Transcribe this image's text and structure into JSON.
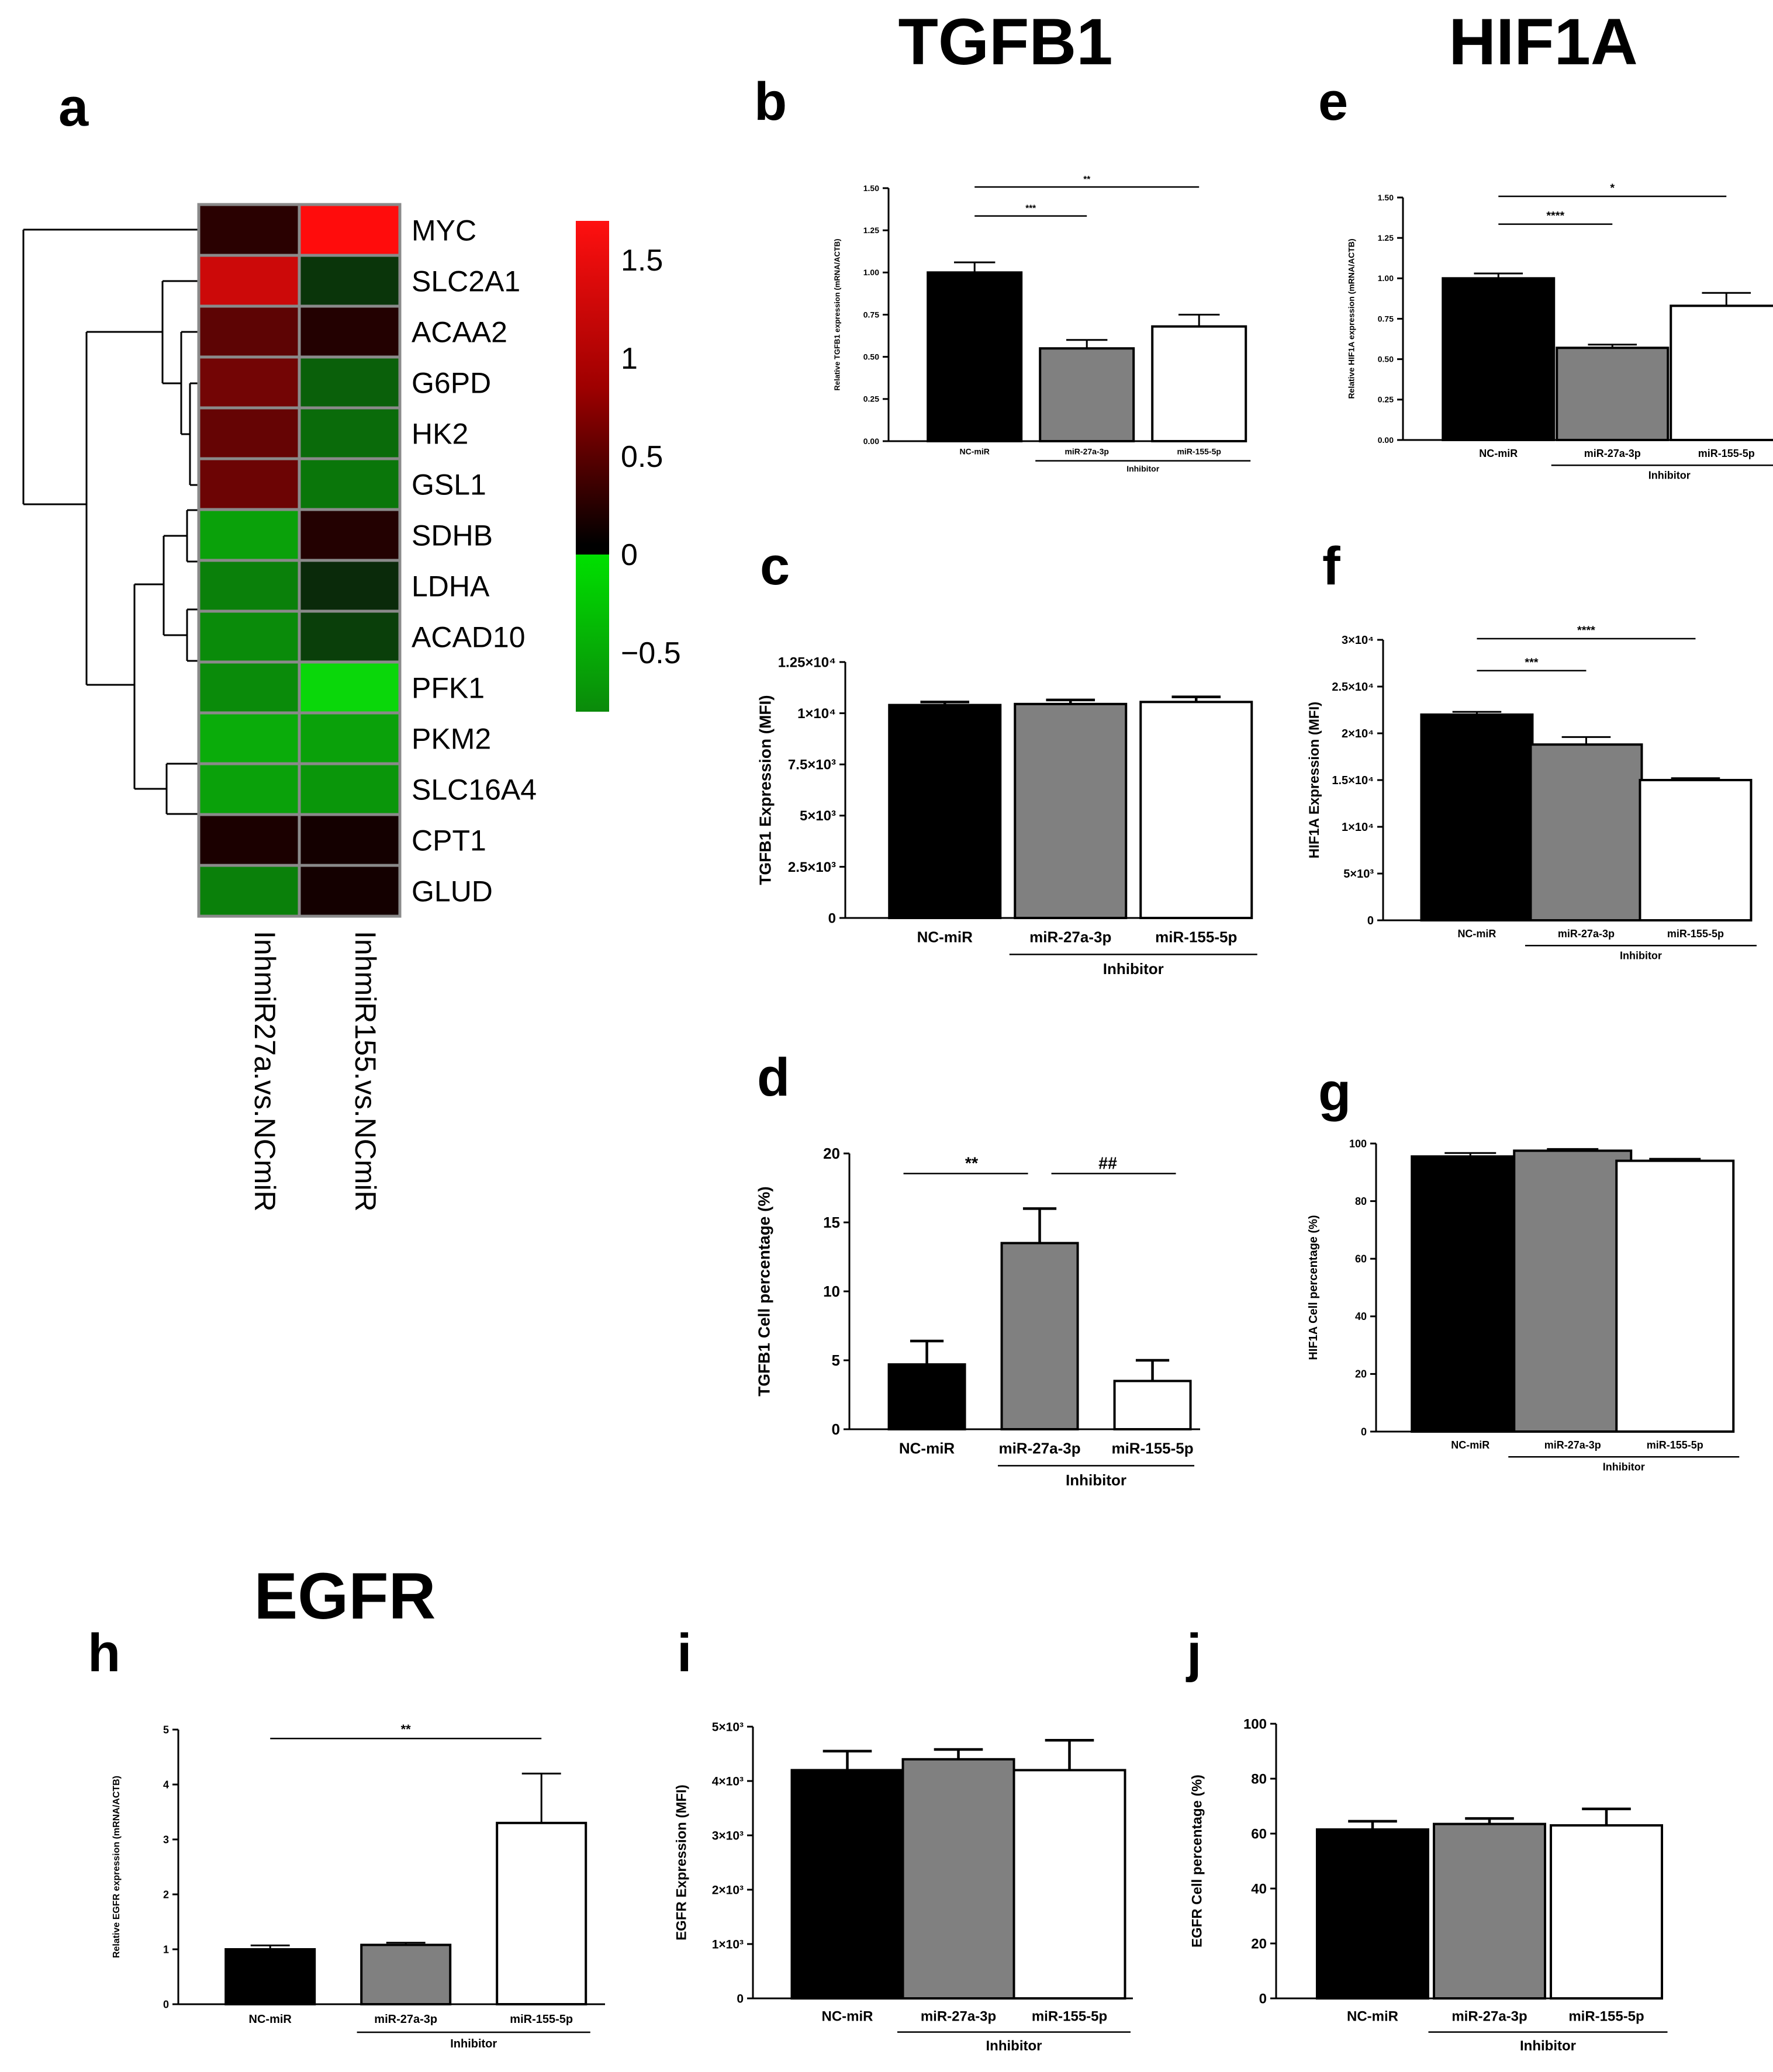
{
  "headers": {
    "tgfb1": "TGFB1",
    "hif1a": "HIF1A",
    "egfr": "EGFR"
  },
  "panel_labels": {
    "a": "a",
    "b": "b",
    "c": "c",
    "d": "d",
    "e": "e",
    "f": "f",
    "g": "g",
    "h": "h",
    "i": "i",
    "j": "j"
  },
  "chart_data": [
    {
      "id": "a",
      "type": "heatmap",
      "rows": [
        "MYC",
        "SLC2A1",
        "ACAA2",
        "G6PD",
        "HK2",
        "GSL1",
        "SDHB",
        "LDHA",
        "ACAD10",
        "PFK1",
        "PKM2",
        "SLC16A4",
        "CPT1",
        "GLUD"
      ],
      "columns": [
        "InhmiR27a.vs.NCmiR",
        "InhmiR155.vs.NCmiR"
      ],
      "values": [
        [
          0.15,
          1.6
        ],
        [
          1.25,
          -0.15
        ],
        [
          0.5,
          0.1
        ],
        [
          0.65,
          -0.35
        ],
        [
          0.55,
          -0.4
        ],
        [
          0.6,
          -0.45
        ],
        [
          -0.65,
          0.1
        ],
        [
          -0.5,
          -0.1
        ],
        [
          -0.55,
          -0.2
        ],
        [
          -0.55,
          -0.9
        ],
        [
          -0.7,
          -0.65
        ],
        [
          -0.65,
          -0.6
        ],
        [
          0.05,
          0.0
        ],
        [
          -0.5,
          0.0
        ]
      ],
      "colorbar": {
        "range": [
          -0.8,
          1.7
        ],
        "ticks": [
          "1.5",
          "1",
          "0.5",
          "0",
          "−0.5"
        ],
        "tick_values": [
          1.5,
          1.0,
          0.5,
          0.0,
          -0.5
        ]
      }
    },
    {
      "id": "b",
      "type": "bar",
      "categories": [
        "NC-miR",
        "miR-27a-3p",
        "miR-155-5p"
      ],
      "values": [
        1.0,
        0.55,
        0.68
      ],
      "errors": [
        0.06,
        0.05,
        0.07
      ],
      "ylabel": "Relative TGFB1 expression (mRNA/ACTB)",
      "ylim": [
        0,
        1.5
      ],
      "yticks": [
        "0.00",
        "0.25",
        "0.50",
        "0.75",
        "1.00",
        "1.25",
        "1.50"
      ],
      "group_label": "Inhibitor",
      "significance": [
        {
          "from": 0,
          "to": 1,
          "label": "***"
        },
        {
          "from": 0,
          "to": 2,
          "label": "**"
        }
      ]
    },
    {
      "id": "c",
      "type": "bar",
      "categories": [
        "NC-miR",
        "miR-27a-3p",
        "miR-155-5p"
      ],
      "values": [
        10400,
        10450,
        10550
      ],
      "errors": [
        150,
        200,
        250
      ],
      "ylabel": "TGFB1 Expression (MFI)",
      "ylim": [
        0,
        12500
      ],
      "yticks": [
        "0",
        "2.5×10³",
        "5×10³",
        "7.5×10³",
        "1×10⁴",
        "1.25×10⁴"
      ],
      "group_label": "Inhibitor",
      "significance": []
    },
    {
      "id": "d",
      "type": "bar",
      "categories": [
        "NC-miR",
        "miR-27a-3p",
        "miR-155-5p"
      ],
      "values": [
        4.7,
        13.5,
        3.5
      ],
      "errors": [
        1.7,
        2.5,
        1.5
      ],
      "ylabel": "TGFB1 Cell percentage (%)",
      "ylim": [
        0,
        20
      ],
      "yticks": [
        "0",
        "5",
        "10",
        "15",
        "20"
      ],
      "group_label": "Inhibitor",
      "significance": [
        {
          "from": 0,
          "to": 1,
          "label": "**"
        },
        {
          "from": 1,
          "to": 2,
          "label": "##"
        }
      ]
    },
    {
      "id": "e",
      "type": "bar",
      "categories": [
        "NC-miR",
        "miR-27a-3p",
        "miR-155-5p"
      ],
      "values": [
        1.0,
        0.57,
        0.83
      ],
      "errors": [
        0.03,
        0.02,
        0.08
      ],
      "ylabel": "Relative HIF1A expression (mRNA/ACTB)",
      "ylim": [
        0,
        1.5
      ],
      "yticks": [
        "0.00",
        "0.25",
        "0.50",
        "0.75",
        "1.00",
        "1.25",
        "1.50"
      ],
      "group_label": "Inhibitor",
      "significance": [
        {
          "from": 0,
          "to": 1,
          "label": "****"
        },
        {
          "from": 0,
          "to": 2,
          "label": "*"
        }
      ]
    },
    {
      "id": "f",
      "type": "bar",
      "categories": [
        "NC-miR",
        "miR-27a-3p",
        "miR-155-5p"
      ],
      "values": [
        22000,
        18800,
        15000
      ],
      "errors": [
        300,
        800,
        200
      ],
      "ylabel": "HIF1A Expression (MFI)",
      "ylim": [
        0,
        30000
      ],
      "yticks": [
        "0",
        "5×10³",
        "1×10⁴",
        "1.5×10⁴",
        "2×10⁴",
        "2.5×10⁴",
        "3×10⁴"
      ],
      "group_label": "Inhibitor",
      "significance": [
        {
          "from": 0,
          "to": 1,
          "label": "***"
        },
        {
          "from": 0,
          "to": 2,
          "label": "****"
        }
      ]
    },
    {
      "id": "g",
      "type": "bar",
      "categories": [
        "NC-miR",
        "miR-27a-3p",
        "miR-155-5p"
      ],
      "values": [
        95.5,
        97.5,
        94
      ],
      "errors": [
        1.2,
        0.6,
        0.7
      ],
      "ylabel": "HIF1A Cell percentage (%)",
      "ylim": [
        0,
        100
      ],
      "yticks": [
        "0",
        "20",
        "40",
        "60",
        "80",
        "100"
      ],
      "group_label": "Inhibitor",
      "significance": []
    },
    {
      "id": "h",
      "type": "bar",
      "categories": [
        "NC-miR",
        "miR-27a-3p",
        "miR-155-5p"
      ],
      "values": [
        1.0,
        1.08,
        3.3
      ],
      "errors": [
        0.07,
        0.04,
        0.9
      ],
      "ylabel": "Relative EGFR expression (mRNA/ACTB)",
      "ylim": [
        0,
        5
      ],
      "yticks": [
        "0",
        "1",
        "2",
        "3",
        "4",
        "5"
      ],
      "group_label": "Inhibitor",
      "significance": [
        {
          "from": 0,
          "to": 2,
          "label": "**"
        }
      ]
    },
    {
      "id": "i",
      "type": "bar",
      "categories": [
        "NC-miR",
        "miR-27a-3p",
        "miR-155-5p"
      ],
      "values": [
        4200,
        4400,
        4200
      ],
      "errors": [
        350,
        180,
        550
      ],
      "ylabel": "EGFR Expression (MFI)",
      "ylim": [
        0,
        5000
      ],
      "yticks": [
        "0",
        "1×10³",
        "2×10³",
        "3×10³",
        "4×10³",
        "5×10³"
      ],
      "group_label": "Inhibitor",
      "significance": []
    },
    {
      "id": "j",
      "type": "bar",
      "categories": [
        "NC-miR",
        "miR-27a-3p",
        "miR-155-5p"
      ],
      "values": [
        61.5,
        63.5,
        63
      ],
      "errors": [
        3,
        2,
        6
      ],
      "ylabel": "EGFR Cell percentage (%)",
      "ylim": [
        0,
        100
      ],
      "yticks": [
        "0",
        "20",
        "40",
        "60",
        "80",
        "100"
      ],
      "group_label": "Inhibitor",
      "significance": []
    }
  ]
}
